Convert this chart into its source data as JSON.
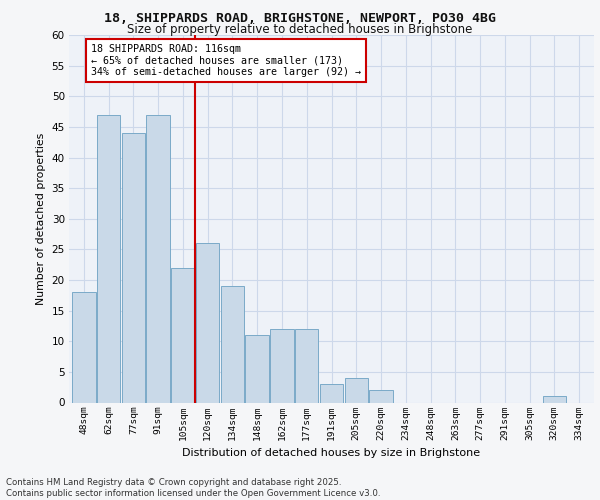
{
  "title_line1": "18, SHIPPARDS ROAD, BRIGHSTONE, NEWPORT, PO30 4BG",
  "title_line2": "Size of property relative to detached houses in Brighstone",
  "xlabel": "Distribution of detached houses by size in Brighstone",
  "ylabel": "Number of detached properties",
  "categories": [
    "48sqm",
    "62sqm",
    "77sqm",
    "91sqm",
    "105sqm",
    "120sqm",
    "134sqm",
    "148sqm",
    "162sqm",
    "177sqm",
    "191sqm",
    "205sqm",
    "220sqm",
    "234sqm",
    "248sqm",
    "263sqm",
    "277sqm",
    "291sqm",
    "305sqm",
    "320sqm",
    "334sqm"
  ],
  "values": [
    18,
    47,
    44,
    47,
    22,
    26,
    19,
    11,
    12,
    12,
    3,
    4,
    2,
    0,
    0,
    0,
    0,
    0,
    0,
    1,
    0
  ],
  "bar_color": "#c9d9e8",
  "bar_edge_color": "#7aaac8",
  "highlight_bar_index": 5,
  "highlight_label_line1": "18 SHIPPARDS ROAD: 116sqm",
  "highlight_label_line2": "← 65% of detached houses are smaller (173)",
  "highlight_label_line3": "34% of semi-detached houses are larger (92) →",
  "vline_color": "#cc0000",
  "annotation_box_color": "#cc0000",
  "grid_color": "#cdd8ea",
  "background_color": "#eef2f8",
  "fig_background": "#f5f6f8",
  "ylim": [
    0,
    60
  ],
  "yticks": [
    0,
    5,
    10,
    15,
    20,
    25,
    30,
    35,
    40,
    45,
    50,
    55,
    60
  ],
  "footer": "Contains HM Land Registry data © Crown copyright and database right 2025.\nContains public sector information licensed under the Open Government Licence v3.0."
}
